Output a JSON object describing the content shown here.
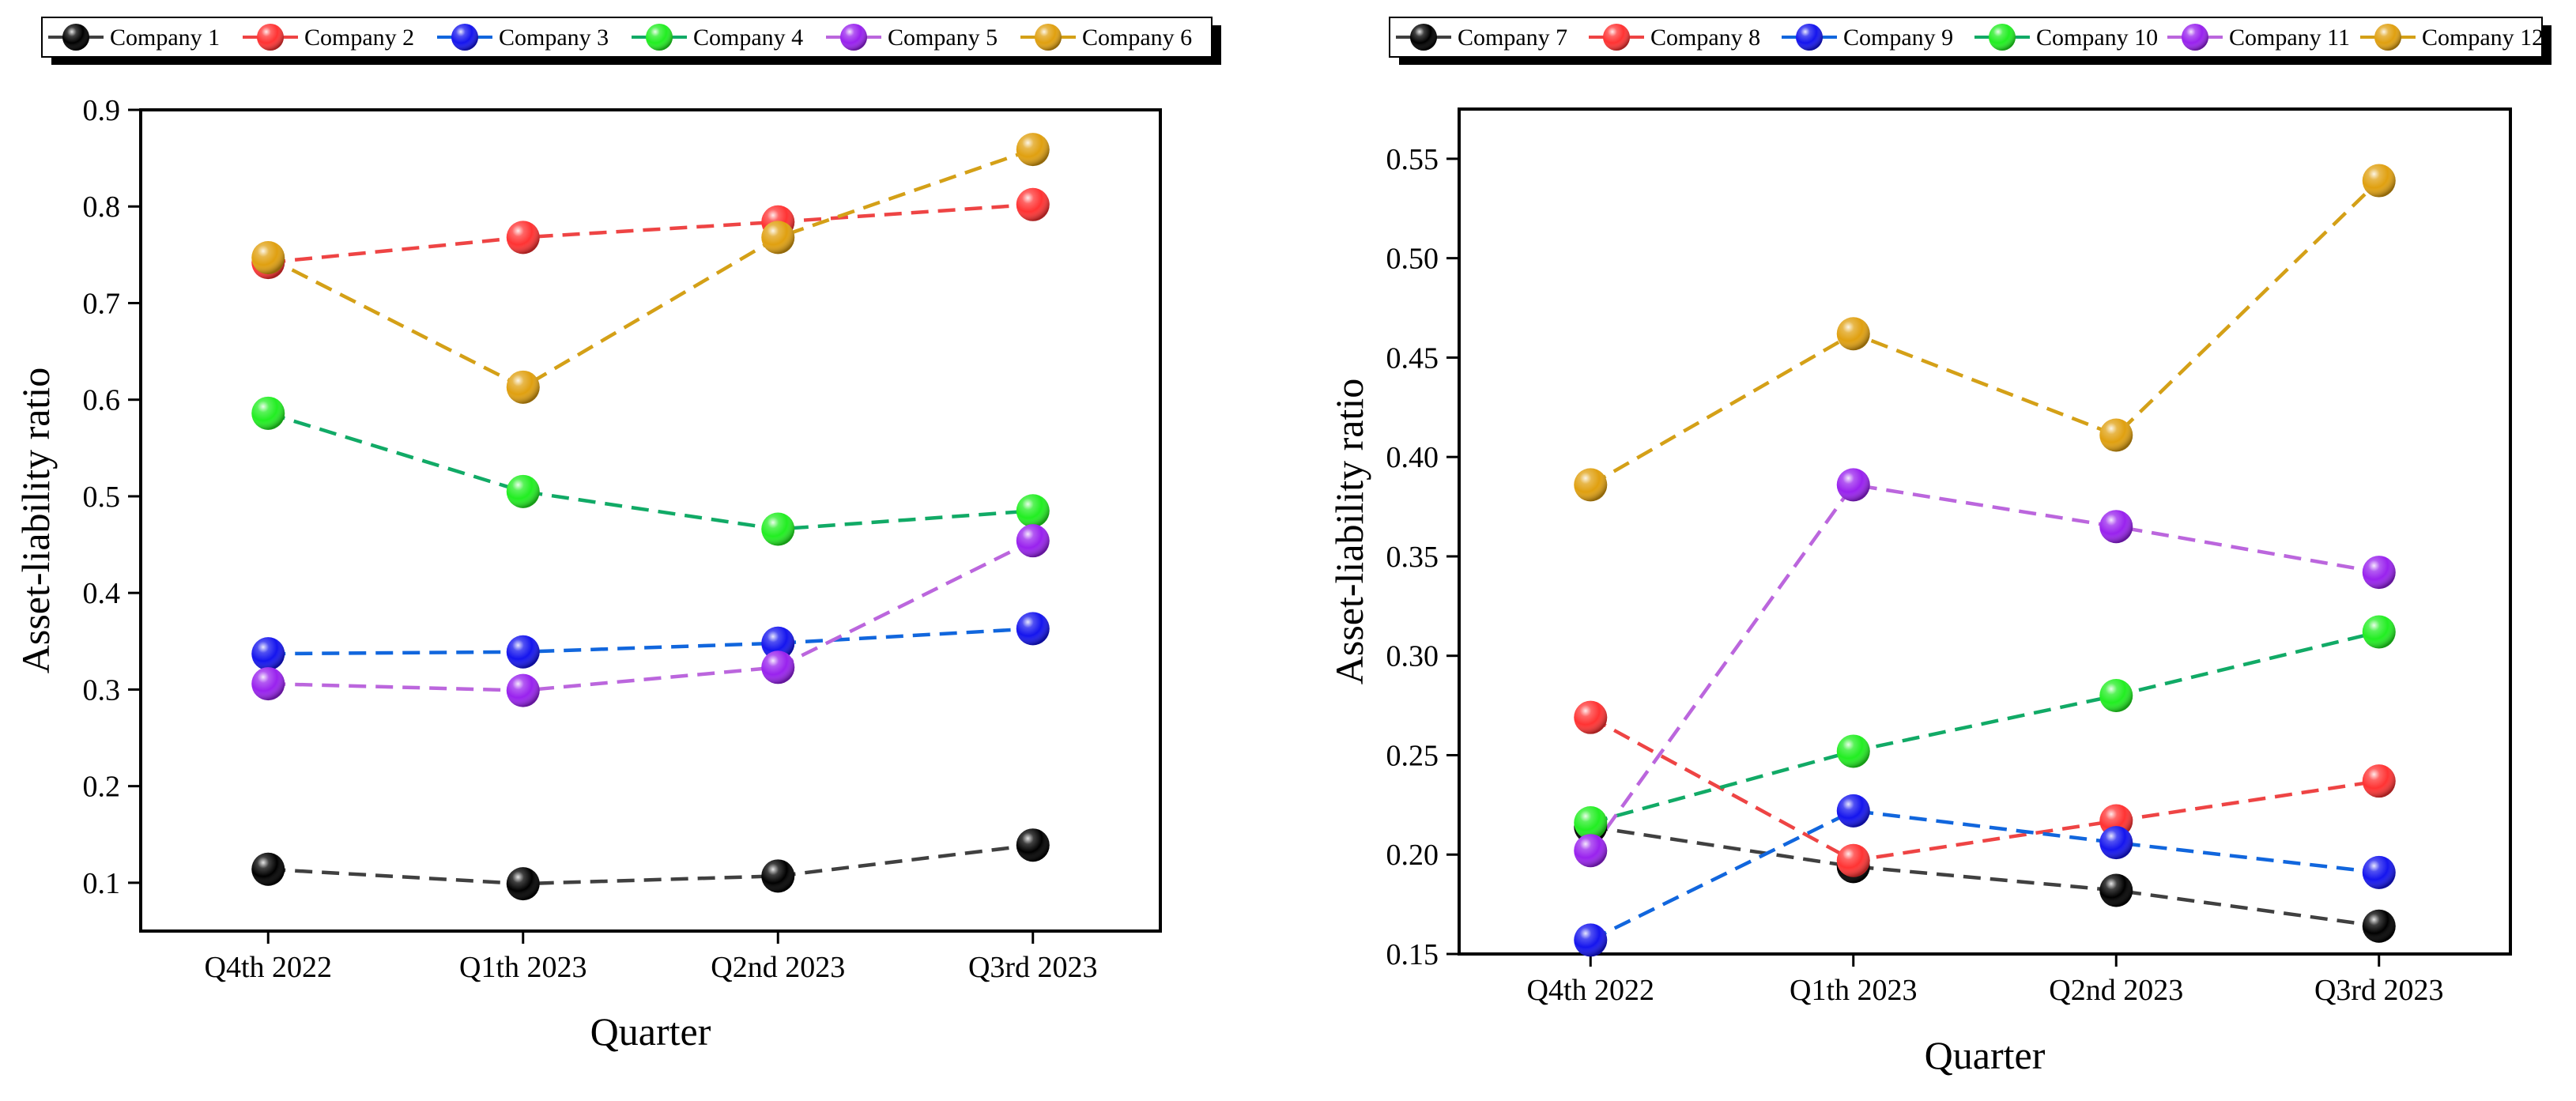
{
  "chart_data": [
    {
      "type": "line",
      "categories": [
        "Q4th 2022",
        "Q1th 2023",
        "Q2nd 2023",
        "Q3rd 2023"
      ],
      "xlabel": "Quarter",
      "ylabel": "Asset-liability ratio",
      "ylim": [
        0.05,
        0.9
      ],
      "yticks": [
        0.1,
        0.2,
        0.3,
        0.4,
        0.5,
        0.6,
        0.7,
        0.8,
        0.9
      ],
      "ytick_labels": [
        "0.1",
        "0.2",
        "0.3",
        "0.4",
        "0.5",
        "0.6",
        "0.7",
        "0.8",
        "0.9"
      ],
      "grid": false,
      "legend": "top",
      "series": [
        {
          "name": "Company 1",
          "color": "#000000",
          "line_color": "#404040",
          "values": [
            0.114,
            0.099,
            0.107,
            0.139
          ]
        },
        {
          "name": "Company 2",
          "color": "#ff3333",
          "line_color": "#ee4444",
          "values": [
            0.742,
            0.768,
            0.784,
            0.802
          ]
        },
        {
          "name": "Company 3",
          "color": "#1515ee",
          "line_color": "#1166dd",
          "values": [
            0.337,
            0.339,
            0.348,
            0.363
          ]
        },
        {
          "name": "Company 4",
          "color": "#22ee22",
          "line_color": "#11aa66",
          "values": [
            0.586,
            0.505,
            0.466,
            0.485
          ]
        },
        {
          "name": "Company 5",
          "color": "#9922ee",
          "line_color": "#bb66dd",
          "values": [
            0.306,
            0.299,
            0.323,
            0.454
          ]
        },
        {
          "name": "Company 6",
          "color": "#e0a010",
          "line_color": "#d4a017",
          "values": [
            0.747,
            0.613,
            0.768,
            0.859
          ]
        }
      ]
    },
    {
      "type": "line",
      "categories": [
        "Q4th 2022",
        "Q1th 2023",
        "Q2nd 2023",
        "Q3rd 2023"
      ],
      "xlabel": "Quarter",
      "ylabel": "Asset-liability ratio",
      "ylim": [
        0.15,
        0.575
      ],
      "yticks": [
        0.15,
        0.2,
        0.25,
        0.3,
        0.35,
        0.4,
        0.45,
        0.5,
        0.55
      ],
      "ytick_labels": [
        "0.15",
        "0.20",
        "0.25",
        "0.30",
        "0.35",
        "0.40",
        "0.45",
        "0.50",
        "0.55"
      ],
      "grid": false,
      "legend": "top",
      "series": [
        {
          "name": "Company 7",
          "color": "#000000",
          "line_color": "#404040",
          "values": [
            0.214,
            0.194,
            0.182,
            0.164
          ]
        },
        {
          "name": "Company 8",
          "color": "#ff3333",
          "line_color": "#ee4444",
          "values": [
            0.269,
            0.197,
            0.217,
            0.237
          ]
        },
        {
          "name": "Company 9",
          "color": "#1515ee",
          "line_color": "#1166dd",
          "values": [
            0.157,
            0.222,
            0.206,
            0.191
          ]
        },
        {
          "name": "Company 10",
          "color": "#22ee22",
          "line_color": "#11aa66",
          "values": [
            0.216,
            0.252,
            0.28,
            0.312
          ]
        },
        {
          "name": "Company 11",
          "color": "#9922ee",
          "line_color": "#bb66dd",
          "values": [
            0.202,
            0.386,
            0.365,
            0.342
          ]
        },
        {
          "name": "Company 12",
          "color": "#e0a010",
          "line_color": "#d4a017",
          "values": [
            0.386,
            0.462,
            0.411,
            0.539
          ]
        }
      ]
    }
  ]
}
